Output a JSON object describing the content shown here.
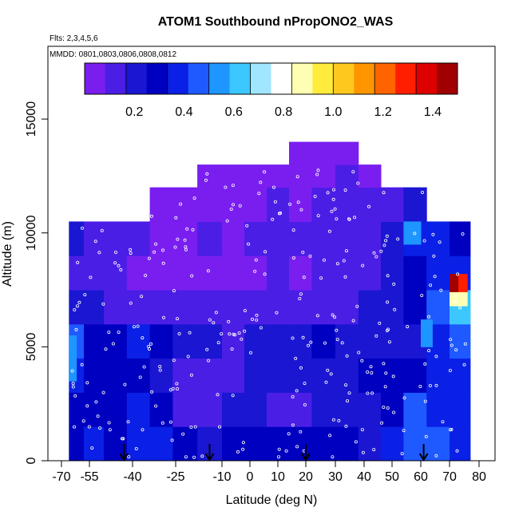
{
  "chart_data": {
    "type": "heatmap",
    "title": "ATOM1 Southbound nPropONO2_WAS",
    "subtitle_flights": "Flts: 2,3,4,5,6",
    "subtitle_dates": "MMDD: 0801,0803,0806,0808,0812",
    "xlabel": "Latitude (deg N)",
    "ylabel": "Altitude (m)",
    "x_ticks": [
      -70,
      -55,
      -40,
      -25,
      -10,
      0,
      10,
      20,
      30,
      40,
      50,
      60,
      70,
      80
    ],
    "y_ticks": [
      0,
      5000,
      10000,
      15000
    ],
    "colorbar": {
      "range": [
        0.0,
        1.5
      ],
      "ticks": [
        "0.2",
        "0.4",
        "0.6",
        "0.8",
        "1.0",
        "1.2",
        "1.4"
      ],
      "colors": [
        "#7a1ef0",
        "#4b1ee6",
        "#1a16d2",
        "#0000c0",
        "#0a20e6",
        "#1e5aff",
        "#1e96ff",
        "#3cc8ff",
        "#a0e6ff",
        "#ffffff",
        "#ffffb4",
        "#ffeb3c",
        "#ffc81e",
        "#ff9600",
        "#ff6400",
        "#ff1e00",
        "#dc0000",
        "#a00000"
      ]
    },
    "flight_dates_marker_latitudes": [
      -43,
      -14,
      20,
      61
    ],
    "grid": false,
    "cells": [
      [
        -66,
        -58,
        0,
        1500,
        0.28
      ],
      [
        -58,
        -50,
        0,
        1500,
        0.34
      ],
      [
        -50,
        -42,
        0,
        1500,
        0.3
      ],
      [
        -42,
        -34,
        0,
        1500,
        0.34
      ],
      [
        -34,
        -26,
        0,
        1500,
        0.36
      ],
      [
        -26,
        -18,
        0,
        1500,
        0.3
      ],
      [
        -18,
        -10,
        0,
        1500,
        0.22
      ],
      [
        -10,
        -2,
        0,
        1500,
        0.28
      ],
      [
        -2,
        6,
        0,
        1500,
        0.32
      ],
      [
        6,
        14,
        0,
        1500,
        0.3
      ],
      [
        14,
        22,
        0,
        1500,
        0.26
      ],
      [
        22,
        30,
        0,
        1500,
        0.3
      ],
      [
        30,
        38,
        0,
        1500,
        0.28
      ],
      [
        38,
        46,
        0,
        1500,
        0.24
      ],
      [
        46,
        54,
        0,
        1500,
        0.34
      ],
      [
        54,
        62,
        0,
        1500,
        0.44
      ],
      [
        62,
        70,
        0,
        1500,
        0.42
      ],
      [
        70,
        77,
        0,
        1500,
        0.36
      ],
      [
        -66,
        -58,
        1500,
        3000,
        0.3
      ],
      [
        -58,
        -50,
        1500,
        3000,
        0.26
      ],
      [
        -50,
        -42,
        1500,
        3000,
        0.32
      ],
      [
        -42,
        -34,
        1500,
        3000,
        0.38
      ],
      [
        -34,
        -26,
        1500,
        3000,
        0.3
      ],
      [
        -26,
        -18,
        1500,
        3000,
        0.16
      ],
      [
        -18,
        -10,
        1500,
        3000,
        0.14
      ],
      [
        -10,
        -2,
        1500,
        3000,
        0.18
      ],
      [
        -2,
        6,
        1500,
        3000,
        0.22
      ],
      [
        6,
        14,
        1500,
        3000,
        0.16
      ],
      [
        14,
        22,
        1500,
        3000,
        0.14
      ],
      [
        22,
        30,
        1500,
        3000,
        0.18
      ],
      [
        30,
        38,
        1500,
        3000,
        0.2
      ],
      [
        38,
        46,
        1500,
        3000,
        0.24
      ],
      [
        46,
        54,
        1500,
        3000,
        0.3
      ],
      [
        54,
        62,
        1500,
        3000,
        0.42
      ],
      [
        62,
        70,
        1500,
        3000,
        0.4
      ],
      [
        70,
        77,
        1500,
        3000,
        0.34
      ],
      [
        -66,
        -58,
        3000,
        4500,
        0.34
      ],
      [
        -58,
        -50,
        3000,
        4500,
        0.3
      ],
      [
        -50,
        -42,
        3000,
        4500,
        0.26
      ],
      [
        -42,
        -34,
        3000,
        4500,
        0.28
      ],
      [
        -34,
        -26,
        3000,
        4500,
        0.2
      ],
      [
        -26,
        -18,
        3000,
        4500,
        0.12
      ],
      [
        -18,
        -10,
        3000,
        4500,
        0.1
      ],
      [
        -10,
        -2,
        3000,
        4500,
        0.12
      ],
      [
        -2,
        6,
        3000,
        4500,
        0.2
      ],
      [
        6,
        14,
        3000,
        4500,
        0.22
      ],
      [
        14,
        22,
        3000,
        4500,
        0.18
      ],
      [
        22,
        30,
        3000,
        4500,
        0.2
      ],
      [
        30,
        38,
        3000,
        4500,
        0.24
      ],
      [
        38,
        46,
        3000,
        4500,
        0.26
      ],
      [
        46,
        54,
        3000,
        4500,
        0.28
      ],
      [
        54,
        62,
        3000,
        4500,
        0.3
      ],
      [
        62,
        70,
        3000,
        4500,
        0.36
      ],
      [
        70,
        77,
        3000,
        4500,
        0.4
      ],
      [
        -66,
        -58,
        4500,
        6000,
        0.44
      ],
      [
        -58,
        -50,
        4500,
        6000,
        0.3
      ],
      [
        -50,
        -42,
        4500,
        6000,
        0.28
      ],
      [
        -42,
        -34,
        4500,
        6000,
        0.34
      ],
      [
        -34,
        -26,
        4500,
        6000,
        0.26
      ],
      [
        -26,
        -18,
        4500,
        6000,
        0.2
      ],
      [
        -18,
        -10,
        4500,
        6000,
        0.18
      ],
      [
        -10,
        -2,
        4500,
        6000,
        0.16
      ],
      [
        -2,
        6,
        4500,
        6000,
        0.22
      ],
      [
        6,
        14,
        4500,
        6000,
        0.2
      ],
      [
        14,
        22,
        4500,
        6000,
        0.24
      ],
      [
        22,
        30,
        4500,
        6000,
        0.28
      ],
      [
        30,
        38,
        4500,
        6000,
        0.22
      ],
      [
        38,
        46,
        4500,
        6000,
        0.18
      ],
      [
        46,
        54,
        4500,
        6000,
        0.2
      ],
      [
        54,
        62,
        4500,
        6000,
        0.24
      ],
      [
        62,
        70,
        4500,
        6000,
        0.4
      ],
      [
        70,
        77,
        4500,
        6000,
        0.46
      ],
      [
        -66,
        -58,
        6000,
        7500,
        0.2
      ],
      [
        -58,
        -50,
        6000,
        7500,
        0.18
      ],
      [
        -50,
        -42,
        6000,
        7500,
        0.16
      ],
      [
        -42,
        -34,
        6000,
        7500,
        0.14
      ],
      [
        -34,
        -26,
        6000,
        7500,
        0.12
      ],
      [
        -26,
        -18,
        6000,
        7500,
        0.1
      ],
      [
        -18,
        -10,
        6000,
        7500,
        0.1
      ],
      [
        -10,
        -2,
        6000,
        7500,
        0.12
      ],
      [
        -2,
        6,
        6000,
        7500,
        0.14
      ],
      [
        6,
        14,
        6000,
        7500,
        0.12
      ],
      [
        14,
        22,
        6000,
        7500,
        0.1
      ],
      [
        22,
        30,
        6000,
        7500,
        0.14
      ],
      [
        30,
        38,
        6000,
        7500,
        0.16
      ],
      [
        38,
        46,
        6000,
        7500,
        0.18
      ],
      [
        46,
        54,
        6000,
        7500,
        0.22
      ],
      [
        54,
        62,
        6000,
        7500,
        0.26
      ],
      [
        62,
        70,
        6000,
        7500,
        0.42
      ],
      [
        70,
        77,
        6000,
        7500,
        0.6
      ],
      [
        -66,
        -58,
        7500,
        9000,
        0.14
      ],
      [
        -58,
        -50,
        7500,
        9000,
        0.12
      ],
      [
        -50,
        -42,
        7500,
        9000,
        0.1
      ],
      [
        -42,
        -34,
        7500,
        9000,
        0.08
      ],
      [
        -34,
        -26,
        7500,
        9000,
        0.06
      ],
      [
        -26,
        -18,
        7500,
        9000,
        0.06
      ],
      [
        -18,
        -10,
        7500,
        9000,
        0.08
      ],
      [
        -10,
        -2,
        7500,
        9000,
        0.06
      ],
      [
        -2,
        6,
        7500,
        9000,
        0.08
      ],
      [
        6,
        14,
        7500,
        9000,
        0.1
      ],
      [
        14,
        22,
        7500,
        9000,
        0.08
      ],
      [
        22,
        30,
        7500,
        9000,
        0.1
      ],
      [
        30,
        38,
        7500,
        9000,
        0.12
      ],
      [
        38,
        46,
        7500,
        9000,
        0.14
      ],
      [
        46,
        54,
        7500,
        9000,
        0.2
      ],
      [
        54,
        62,
        7500,
        9000,
        0.3
      ],
      [
        62,
        70,
        7500,
        9000,
        0.4
      ],
      [
        70,
        77,
        7500,
        9000,
        0.38
      ],
      [
        -66,
        -58,
        9000,
        10500,
        0.18
      ],
      [
        -58,
        -50,
        9000,
        10500,
        0.14
      ],
      [
        -50,
        -42,
        9000,
        10500,
        0.12
      ],
      [
        -42,
        -34,
        9000,
        10500,
        0.1
      ],
      [
        -34,
        -26,
        9000,
        10500,
        0.08
      ],
      [
        -26,
        -18,
        9000,
        10500,
        0.08
      ],
      [
        -18,
        -10,
        9000,
        10500,
        0.1
      ],
      [
        -10,
        -2,
        9000,
        10500,
        0.08
      ],
      [
        -2,
        6,
        9000,
        10500,
        0.1
      ],
      [
        6,
        14,
        9000,
        10500,
        0.12
      ],
      [
        14,
        22,
        9000,
        10500,
        0.1
      ],
      [
        22,
        30,
        9000,
        10500,
        0.12
      ],
      [
        30,
        38,
        9000,
        10500,
        0.14
      ],
      [
        38,
        46,
        9000,
        10500,
        0.16
      ],
      [
        46,
        54,
        9000,
        10500,
        0.22
      ],
      [
        54,
        62,
        9000,
        10500,
        0.38
      ],
      [
        62,
        70,
        9000,
        10500,
        0.36
      ],
      [
        70,
        77,
        9000,
        10500,
        0.3
      ],
      [
        -34,
        -26,
        10500,
        12000,
        0.08
      ],
      [
        -26,
        -18,
        10500,
        12000,
        0.06
      ],
      [
        -18,
        -10,
        10500,
        12000,
        0.08
      ],
      [
        -10,
        -2,
        10500,
        12000,
        0.06
      ],
      [
        -2,
        6,
        10500,
        12000,
        0.08
      ],
      [
        6,
        14,
        10500,
        12000,
        0.1
      ],
      [
        14,
        22,
        10500,
        12000,
        0.08
      ],
      [
        22,
        30,
        10500,
        12000,
        0.1
      ],
      [
        30,
        38,
        10500,
        12000,
        0.12
      ],
      [
        38,
        46,
        10500,
        12000,
        0.1
      ],
      [
        46,
        54,
        10500,
        12000,
        0.14
      ],
      [
        54,
        62,
        10500,
        12000,
        0.18
      ],
      [
        -18,
        -10,
        12000,
        13000,
        0.08
      ],
      [
        -10,
        -2,
        12000,
        13000,
        0.06
      ],
      [
        -2,
        6,
        12000,
        13000,
        0.08
      ],
      [
        6,
        14,
        12000,
        13000,
        0.08
      ],
      [
        14,
        22,
        12000,
        13000,
        0.06
      ],
      [
        22,
        30,
        12000,
        13000,
        0.08
      ],
      [
        30,
        38,
        12000,
        13000,
        0.1
      ],
      [
        38,
        46,
        12000,
        13000,
        0.08
      ],
      [
        14,
        22,
        13000,
        14000,
        0.06
      ],
      [
        22,
        30,
        13000,
        14000,
        0.07
      ],
      [
        30,
        38,
        13000,
        14000,
        0.06
      ],
      [
        70,
        73,
        7400,
        8200,
        1.45
      ],
      [
        73,
        76,
        7400,
        8200,
        1.25
      ],
      [
        70,
        76,
        6800,
        7400,
        0.85
      ],
      [
        -66,
        -62,
        3500,
        5500,
        0.55
      ],
      [
        54,
        60,
        9500,
        10500,
        0.52
      ],
      [
        60,
        64,
        5000,
        6200,
        0.5
      ]
    ]
  }
}
